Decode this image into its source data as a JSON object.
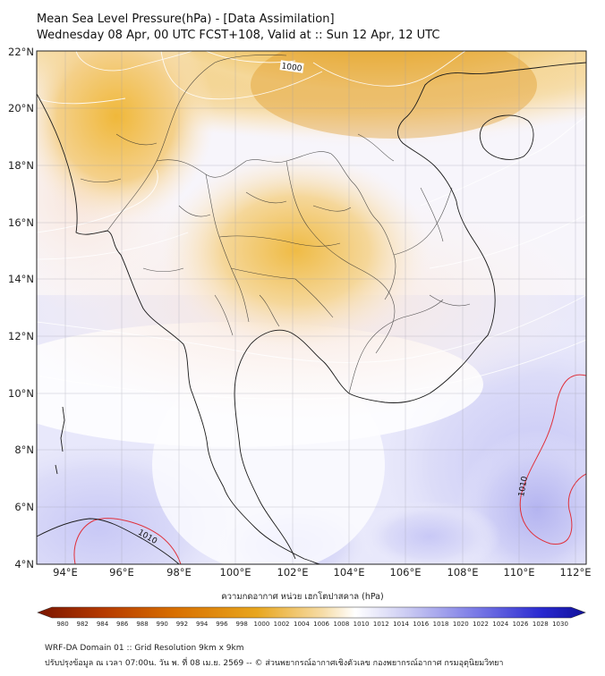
{
  "header": {
    "title": "Mean Sea Level Pressure(hPa) - [Data Assimilation]",
    "subtitle": "Wednesday 08 Apr, 00 UTC FCST+108, Valid at :: Sun 12 Apr, 12 UTC"
  },
  "map": {
    "lon_ticks": [
      "94°E",
      "96°E",
      "98°E",
      "100°E",
      "102°E",
      "104°E",
      "106°E",
      "108°E",
      "110°E",
      "112°E"
    ],
    "lat_ticks": [
      "22°N",
      "20°N",
      "18°N",
      "16°N",
      "14°N",
      "12°N",
      "10°N",
      "8°N",
      "6°N",
      "4°N"
    ],
    "lon_range": [
      93,
      112.3
    ],
    "lat_range": [
      4,
      22
    ],
    "contour_labels": {
      "c1000": "1000",
      "c1010_west": "1010",
      "c1010_east": "1010"
    }
  },
  "colorbar": {
    "title": "ความกดอากาศ หน่วย เฮกโตปาสคาล (hPa)",
    "ticks": [
      "980",
      "982",
      "984",
      "986",
      "988",
      "990",
      "992",
      "994",
      "996",
      "998",
      "1000",
      "1002",
      "1004",
      "1006",
      "1008",
      "1010",
      "1012",
      "1014",
      "1016",
      "1018",
      "1020",
      "1022",
      "1024",
      "1026",
      "1028",
      "1030"
    ],
    "colors": {
      "low": "#8b1a00",
      "mid_low": "#e09a10",
      "neutral": "#ffffff",
      "mid_high": "#8c8ce8",
      "high": "#1010a0"
    }
  },
  "footer": {
    "line1": "WRF-DA Domain 01 :: Grid Resolution 9km x 9km",
    "line2": "ปรับปรุงข้อมูล ณ เวลา 07:00น. วัน พ. ที่ 08 เม.ย. 2569 -- © ส่วนพยากรณ์อากาศเชิงตัวเลข กองพยากรณ์อากาศ กรมอุตุนิยมวิทยา"
  }
}
